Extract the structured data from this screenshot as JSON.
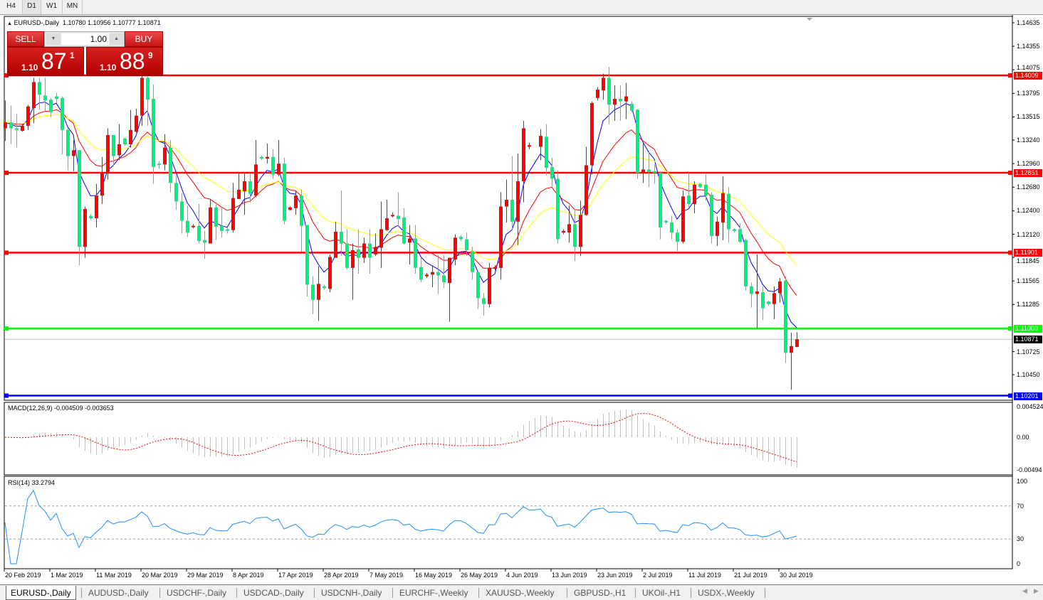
{
  "timeframes": [
    {
      "label": "H4",
      "selected": false
    },
    {
      "label": "D1",
      "selected": true
    },
    {
      "label": "W1",
      "selected": false
    },
    {
      "label": "MN",
      "selected": false
    }
  ],
  "header": {
    "symbol": "EURUSD-,Daily",
    "open": "1.10780",
    "high": "1.10956",
    "low": "1.10777",
    "close": "1.10871"
  },
  "trade_panel": {
    "sell_label": "SELL",
    "buy_label": "BUY",
    "lot": "1.00",
    "sell_prefix": "1.10",
    "sell_big": "87",
    "sell_sup": "1",
    "buy_prefix": "1.10",
    "buy_big": "88",
    "buy_sup": "9"
  },
  "colors": {
    "bull": "#ff0000",
    "bear": "#00f07a",
    "ma_fast": "#0000ff",
    "ma_mid": "#ff0000",
    "ma_slow": "#ffff00",
    "macd_hist": "#c0c0c0",
    "macd_signal": "#ff0000",
    "rsi": "#1e90ff"
  },
  "price_axis": [
    "1.14635",
    "1.14355",
    "1.14075",
    "1.13795",
    "1.13515",
    "1.13240",
    "1.12960",
    "1.12680",
    "1.12400",
    "1.12120",
    "1.11845",
    "1.11565",
    "1.11285",
    "1.10725",
    "1.10450"
  ],
  "hlines": [
    {
      "price": 1.14009,
      "label": "1.14009",
      "color": "#ff0000"
    },
    {
      "price": 1.12851,
      "label": "1.12851",
      "color": "#ff0000"
    },
    {
      "price": 1.11901,
      "label": "1.11901",
      "color": "#ff0000"
    },
    {
      "price": 1.11,
      "label": "1.11000",
      "color": "#00ff00"
    },
    {
      "price": 1.10201,
      "label": "1.10201",
      "color": "#0000ff"
    }
  ],
  "current_price": {
    "price": 1.10871,
    "label": "1.10871"
  },
  "macd": {
    "title": "MACD(12,26,9) -0.004509 -0.003653",
    "axis": [
      "0.004524",
      "0.00",
      "-0.00494"
    ]
  },
  "rsi": {
    "title": "RSI(14) 33.2794",
    "axis": [
      "100",
      "70",
      "30",
      "0"
    ],
    "levels": [
      70,
      30
    ]
  },
  "dates": [
    "20 Feb 2019",
    "1 Mar 2019",
    "11 Mar 2019",
    "20 Mar 2019",
    "29 Mar 2019",
    "8 Apr 2019",
    "17 Apr 2019",
    "28 Apr 2019",
    "7 May 2019",
    "16 May 2019",
    "26 May 2019",
    "4 Jun 2019",
    "13 Jun 2019",
    "23 Jun 2019",
    "2 Jul 2019",
    "11 Jul 2019",
    "21 Jul 2019",
    "30 Jul 2019"
  ],
  "tabs": [
    {
      "label": "EURUSD-,Daily",
      "active": true
    },
    {
      "label": "AUDUSD-,Daily"
    },
    {
      "label": "USDCHF-,Daily"
    },
    {
      "label": "USDCAD-,Daily"
    },
    {
      "label": "USDCNH-,Daily"
    },
    {
      "label": "EURCHF-,Weekly"
    },
    {
      "label": "XAUUSD-,Weekly"
    },
    {
      "label": "GBPUSD-,H1"
    },
    {
      "label": "UKOil-,H1"
    },
    {
      "label": "USDX-,Weekly"
    }
  ],
  "chart_data": {
    "type": "candlestick",
    "symbol": "EURUSD-",
    "timeframe": "Daily",
    "ohlc": [
      [
        1.1338,
        1.1371,
        1.1323,
        1.1345
      ],
      [
        1.1345,
        1.1365,
        1.1319,
        1.1338
      ],
      [
        1.1338,
        1.1355,
        1.1315,
        1.1336
      ],
      [
        1.1335,
        1.1343,
        1.1334,
        1.1341
      ],
      [
        1.1341,
        1.1366,
        1.1336,
        1.1364
      ],
      [
        1.1362,
        1.1398,
        1.1344,
        1.1393
      ],
      [
        1.1393,
        1.1398,
        1.136,
        1.1378
      ],
      [
        1.1377,
        1.1398,
        1.1358,
        1.1371
      ],
      [
        1.1372,
        1.1374,
        1.1351,
        1.1357
      ],
      [
        1.1376,
        1.138,
        1.1368,
        1.1373
      ],
      [
        1.1374,
        1.1376,
        1.1307,
        1.1336
      ],
      [
        1.1336,
        1.1338,
        1.1288,
        1.1305
      ],
      [
        1.1305,
        1.1324,
        1.1287,
        1.1312
      ],
      [
        1.1312,
        1.1312,
        1.1175,
        1.1197
      ],
      [
        1.1197,
        1.1245,
        1.1184,
        1.1242
      ],
      [
        1.1234,
        1.1236,
        1.1229,
        1.1231
      ],
      [
        1.1231,
        1.1272,
        1.122,
        1.1258
      ],
      [
        1.1258,
        1.1304,
        1.1248,
        1.1285
      ],
      [
        1.1285,
        1.1338,
        1.1277,
        1.133
      ],
      [
        1.133,
        1.133,
        1.1293,
        1.1305
      ],
      [
        1.1306,
        1.1343,
        1.13,
        1.1319
      ],
      [
        1.1326,
        1.1327,
        1.1317,
        1.1319
      ],
      [
        1.1319,
        1.136,
        1.1315,
        1.1336
      ],
      [
        1.1334,
        1.1361,
        1.1333,
        1.1353
      ],
      [
        1.1353,
        1.1402,
        1.1341,
        1.1398
      ],
      [
        1.1398,
        1.1402,
        1.1341,
        1.1372
      ],
      [
        1.1373,
        1.139,
        1.1272,
        1.1292
      ],
      [
        1.1296,
        1.1299,
        1.129,
        1.1295
      ],
      [
        1.1295,
        1.1331,
        1.1288,
        1.1315
      ],
      [
        1.1315,
        1.1324,
        1.1262,
        1.1273
      ],
      [
        1.1273,
        1.1282,
        1.1241,
        1.1251
      ],
      [
        1.1251,
        1.1261,
        1.1213,
        1.1228
      ],
      [
        1.1228,
        1.1246,
        1.1209,
        1.1214
      ],
      [
        1.1221,
        1.1224,
        1.1219,
        1.1222
      ],
      [
        1.1222,
        1.1248,
        1.1201,
        1.1204
      ],
      [
        1.1205,
        1.1216,
        1.1183,
        1.1202
      ],
      [
        1.1201,
        1.1254,
        1.1201,
        1.1244
      ],
      [
        1.1244,
        1.1247,
        1.1205,
        1.1221
      ],
      [
        1.1222,
        1.1245,
        1.1208,
        1.1216
      ],
      [
        1.1218,
        1.122,
        1.1213,
        1.1216
      ],
      [
        1.1217,
        1.1273,
        1.1214,
        1.1255
      ],
      [
        1.1254,
        1.1284,
        1.1254,
        1.1265
      ],
      [
        1.1263,
        1.1284,
        1.1235,
        1.1275
      ],
      [
        1.1275,
        1.1284,
        1.125,
        1.126
      ],
      [
        1.1258,
        1.1324,
        1.1256,
        1.1295
      ],
      [
        1.1304,
        1.1306,
        1.13,
        1.1302
      ],
      [
        1.1302,
        1.132,
        1.1296,
        1.1304
      ],
      [
        1.1304,
        1.1313,
        1.1278,
        1.1283
      ],
      [
        1.1283,
        1.1324,
        1.1281,
        1.1296
      ],
      [
        1.1296,
        1.1303,
        1.1224,
        1.1228
      ],
      [
        1.1241,
        1.1245,
        1.124,
        1.1244
      ],
      [
        1.1243,
        1.1264,
        1.1235,
        1.1258
      ],
      [
        1.1258,
        1.1265,
        1.1191,
        1.1222
      ],
      [
        1.1223,
        1.1223,
        1.1138,
        1.1152
      ],
      [
        1.1152,
        1.1162,
        1.1117,
        1.1134
      ],
      [
        1.1134,
        1.1174,
        1.1109,
        1.1153
      ],
      [
        1.115,
        1.1152,
        1.1146,
        1.1148
      ],
      [
        1.1147,
        1.1188,
        1.1143,
        1.1185
      ],
      [
        1.1184,
        1.1227,
        1.1184,
        1.1215
      ],
      [
        1.1215,
        1.1264,
        1.1186,
        1.1201
      ],
      [
        1.1201,
        1.1218,
        1.117,
        1.1172
      ],
      [
        1.1172,
        1.1201,
        1.1134,
        1.1193
      ],
      [
        1.1194,
        1.1218,
        1.1165,
        1.1184
      ],
      [
        1.1184,
        1.1208,
        1.1178,
        1.1201
      ],
      [
        1.1201,
        1.1218,
        1.1165,
        1.1184
      ],
      [
        1.1188,
        1.1213,
        1.1186,
        1.1197
      ],
      [
        1.1196,
        1.1251,
        1.1172,
        1.1218
      ],
      [
        1.1217,
        1.1253,
        1.1216,
        1.1231
      ],
      [
        1.1234,
        1.1238,
        1.1232,
        1.1235
      ],
      [
        1.1234,
        1.1262,
        1.1221,
        1.123
      ],
      [
        1.1232,
        1.1243,
        1.12,
        1.1201
      ],
      [
        1.1202,
        1.1223,
        1.1176,
        1.1207
      ],
      [
        1.1207,
        1.1223,
        1.1165,
        1.1172
      ],
      [
        1.1173,
        1.1184,
        1.1155,
        1.1158
      ],
      [
        1.1162,
        1.1166,
        1.116,
        1.1164
      ],
      [
        1.1164,
        1.1175,
        1.1149,
        1.1167
      ],
      [
        1.1167,
        1.1187,
        1.1141,
        1.1163
      ],
      [
        1.1163,
        1.1187,
        1.1148,
        1.1155
      ],
      [
        1.1154,
        1.1184,
        1.1108,
        1.1184
      ],
      [
        1.1182,
        1.1212,
        1.1175,
        1.1208
      ],
      [
        1.1209,
        1.1211,
        1.1204,
        1.1206
      ],
      [
        1.1206,
        1.1214,
        1.1186,
        1.1193
      ],
      [
        1.1192,
        1.1197,
        1.1158,
        1.1167
      ],
      [
        1.1167,
        1.1167,
        1.1123,
        1.1136
      ],
      [
        1.1136,
        1.1142,
        1.1115,
        1.1129
      ],
      [
        1.1129,
        1.1178,
        1.1125,
        1.1172
      ],
      [
        1.1171,
        1.1175,
        1.1169,
        1.1173
      ],
      [
        1.1172,
        1.1262,
        1.1158,
        1.1245
      ],
      [
        1.1245,
        1.1277,
        1.1226,
        1.1253
      ],
      [
        1.1253,
        1.1305,
        1.1218,
        1.1227
      ],
      [
        1.1227,
        1.1308,
        1.1199,
        1.1275
      ],
      [
        1.1275,
        1.1347,
        1.125,
        1.1338
      ],
      [
        1.1316,
        1.1321,
        1.1313,
        1.1318
      ],
      null,
      [
        1.1316,
        1.1337,
        1.13,
        1.1329
      ],
      [
        1.1328,
        1.1343,
        1.1282,
        1.1291
      ],
      [
        1.1292,
        1.1303,
        1.1268,
        1.1278
      ],
      [
        1.1278,
        1.1288,
        1.1201,
        1.1206
      ],
      [
        1.1214,
        1.1218,
        1.1212,
        1.1216
      ],
      [
        1.1214,
        1.1246,
        1.1202,
        1.1224
      ],
      [
        1.1224,
        1.1242,
        1.118,
        1.1197
      ],
      [
        1.1197,
        1.1252,
        1.1186,
        1.1235
      ],
      [
        1.1235,
        1.1316,
        1.1234,
        1.1294
      ],
      [
        1.1294,
        1.137,
        1.1283,
        1.1368
      ],
      [
        1.1374,
        1.1387,
        1.1371,
        1.1384
      ],
      [
        1.1383,
        1.1403,
        1.1372,
        1.1398
      ],
      [
        1.1398,
        1.1411,
        1.1343,
        1.1366
      ],
      [
        1.1366,
        1.1389,
        1.1347,
        1.1373
      ],
      [
        1.1373,
        1.1389,
        1.1347,
        1.137
      ],
      [
        1.137,
        1.1392,
        1.1349,
        1.1376
      ],
      [
        1.1367,
        1.137,
        1.1357,
        1.1359
      ],
      [
        1.136,
        1.1361,
        1.1278,
        1.1285
      ],
      [
        1.1285,
        1.132,
        1.1273,
        1.1289
      ],
      [
        1.1289,
        1.1311,
        1.1268,
        1.1286
      ],
      [
        1.1287,
        1.1295,
        1.1272,
        1.1285
      ],
      [
        1.1285,
        1.1287,
        1.1206,
        1.122
      ],
      [
        1.1228,
        1.1229,
        1.1224,
        1.1226
      ],
      [
        1.1226,
        1.1234,
        1.1206,
        1.1214
      ],
      [
        1.1214,
        1.1218,
        1.1192,
        1.1203
      ],
      [
        1.1203,
        1.1264,
        1.1201,
        1.1257
      ],
      [
        1.1258,
        1.1285,
        1.1244,
        1.1248
      ],
      [
        1.1248,
        1.1275,
        1.1237,
        1.1271
      ],
      [
        1.1272,
        1.1273,
        1.1267,
        1.1268
      ],
      [
        1.1271,
        1.1283,
        1.1252,
        1.1258
      ],
      [
        1.1259,
        1.1262,
        1.1201,
        1.121
      ],
      [
        1.121,
        1.1233,
        1.1198,
        1.1227
      ],
      [
        1.1226,
        1.1281,
        1.1205,
        1.1261
      ],
      [
        1.126,
        1.1268,
        1.1202,
        1.1218
      ],
      [
        1.1218,
        1.1219,
        1.1214,
        1.1216
      ],
      [
        1.1218,
        1.1225,
        1.1202,
        1.1203
      ],
      [
        1.1205,
        1.1207,
        1.1145,
        1.115
      ],
      [
        1.115,
        1.1155,
        1.1125,
        1.1141
      ],
      [
        1.1141,
        1.1188,
        1.11,
        1.1144
      ],
      [
        1.1143,
        1.115,
        1.111,
        1.1124
      ],
      [
        1.1132,
        1.1133,
        1.1127,
        1.1129
      ],
      [
        1.1129,
        1.115,
        1.1111,
        1.1142
      ],
      [
        1.1142,
        1.116,
        1.1131,
        1.1156
      ],
      [
        1.1157,
        1.1162,
        1.1059,
        1.1071
      ],
      [
        1.1071,
        1.1095,
        1.1027,
        1.1079
      ],
      [
        1.1078,
        1.10956,
        1.10777,
        1.10871
      ]
    ]
  }
}
